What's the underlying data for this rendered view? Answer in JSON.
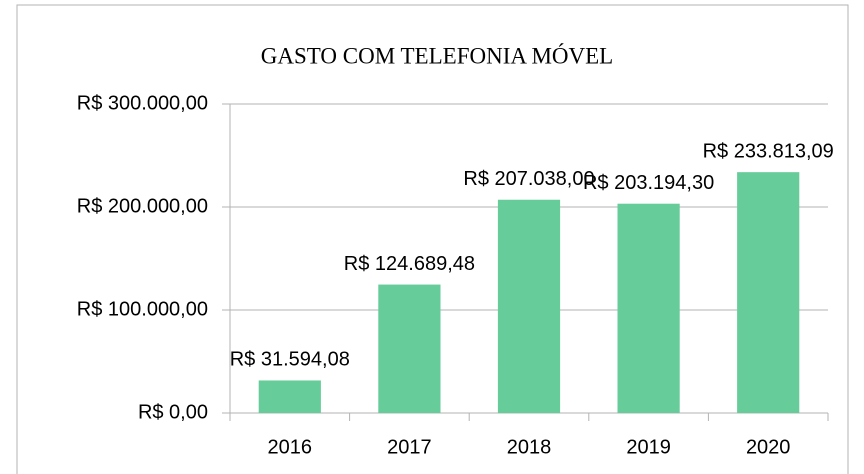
{
  "chart_data": {
    "type": "bar",
    "title": "GASTO COM TELEFONIA MÓVEL",
    "categories": [
      "2016",
      "2017",
      "2018",
      "2019",
      "2020"
    ],
    "values": [
      31594.08,
      124689.48,
      207038.0,
      203194.3,
      233813.09
    ],
    "value_labels": [
      "R$ 31.594,08",
      "R$ 124.689,48",
      "R$ 207.038,00",
      "R$ 203.194,30",
      "R$ 233.813,09"
    ],
    "color": "#66cc99",
    "ylim": [
      0,
      300000
    ],
    "yticks": [
      {
        "value": 0,
        "label": "R$ 0,00"
      },
      {
        "value": 100000,
        "label": "R$ 100.000,00"
      },
      {
        "value": 200000,
        "label": "R$ 200.000,00"
      },
      {
        "value": 300000,
        "label": "R$ 300.000,00"
      }
    ],
    "grid": true
  }
}
